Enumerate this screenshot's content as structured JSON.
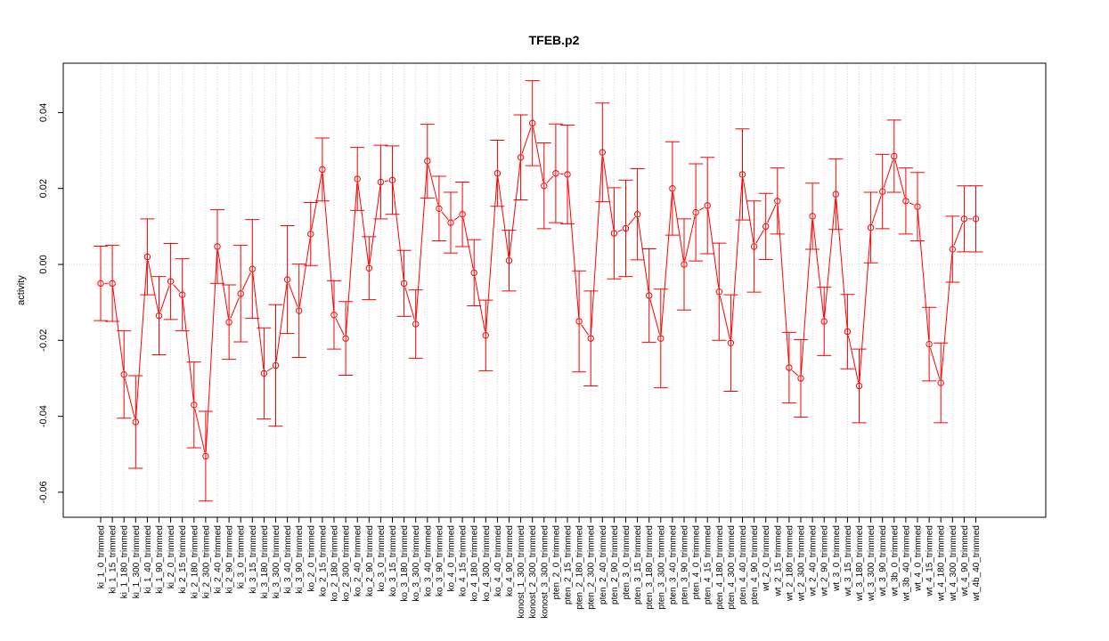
{
  "chart_data": {
    "type": "line",
    "title": "TFEB.p2",
    "ylabel": "activity",
    "xlabel": "",
    "ylim": [
      -0.0665,
      0.0525
    ],
    "yticks": [
      -0.06,
      -0.04,
      -0.02,
      0.0,
      0.02,
      0.04
    ],
    "ytick_labels": [
      "-0.06",
      "-0.04",
      "-0.02",
      "0.00",
      "0.02",
      "0.04"
    ],
    "grid": true,
    "colors": {
      "series": "#ff0000",
      "grid": "#d3d3d3",
      "axis": "#000000"
    },
    "categories": [
      "ki_1_0_trimmed",
      "ki_1_15_trimmed",
      "ki_1_180_trimmed",
      "ki_1_300_trimmed",
      "ki_1_40_trimmed",
      "ki_1_90_trimmed",
      "ki_2_0_trimmed",
      "ki_2_15_trimmed",
      "ki_2_180_trimmed",
      "ki_2_300_trimmed",
      "ki_2_40_trimmed",
      "ki_2_90_trimmed",
      "ki_3_0_trimmed",
      "ki_3_15_trimmed",
      "ki_3_180_trimmed",
      "ki_3_300_trimmed",
      "ki_3_40_trimmed",
      "ki_3_90_trimmed",
      "ko_2_0_trimmed",
      "ko_2_15_trimmed",
      "ko_2_180_trimmed",
      "ko_2_300_trimmed",
      "ko_2_40_trimmed",
      "ko_2_90_trimmed",
      "ko_3_0_trimmed",
      "ko_3_15_trimmed",
      "ko_3_180_trimmed",
      "ko_3_300_trimmed",
      "ko_3_40_trimmed",
      "ko_3_90_trimmed",
      "ko_4_0_trimmed",
      "ko_4_15_trimmed",
      "ko_4_180_trimmed",
      "ko_4_300_trimmed",
      "ko_4_40_trimmed",
      "ko_4_90_trimmed",
      "konost_1_300_trimmed",
      "konost_2_300_trimmed",
      "konost_3_300_trimmed",
      "pten_2_0_trimmed",
      "pten_2_15_trimmed",
      "pten_2_180_trimmed",
      "pten_2_300_trimmed",
      "pten_2_40_trimmed",
      "pten_2_90_trimmed",
      "pten_3_0_trimmed",
      "pten_3_15_trimmed",
      "pten_3_180_trimmed",
      "pten_3_300_trimmed",
      "pten_3_40_trimmed",
      "pten_3_90_trimmed",
      "pten_4_0_trimmed",
      "pten_4_15_trimmed",
      "pten_4_180_trimmed",
      "pten_4_300_trimmed",
      "pten_4_40_trimmed",
      "pten_4_90_trimmed",
      "wt_2_0_trimmed",
      "wt_2_15_trimmed",
      "wt_2_180_trimmed",
      "wt_2_300_trimmed",
      "wt_2_40_trimmed",
      "wt_2_90_trimmed",
      "wt_3_0_trimmed",
      "wt_3_15_trimmed",
      "wt_3_180_trimmed",
      "wt_3_300_trimmed",
      "wt_3_90_trimmed",
      "wt_3b_0_trimmed",
      "wt_3b_40_trimmed",
      "wt_4_0_trimmed",
      "wt_4_15_trimmed",
      "wt_4_180_trimmed",
      "wt_4_300_trimmed",
      "wt_4_90_trimmed",
      "wt_4b_40_trimmed"
    ],
    "series": [
      {
        "values": [
          -0.005,
          -0.005,
          -0.029,
          -0.0415,
          0.002,
          -0.0135,
          -0.0045,
          -0.008,
          -0.037,
          -0.0505,
          0.0047,
          -0.0152,
          -0.0077,
          -0.0012,
          -0.0287,
          -0.0266,
          -0.004,
          -0.0122,
          0.008,
          0.025,
          -0.0133,
          -0.0195,
          0.0225,
          -0.001,
          0.0217,
          0.0222,
          -0.005,
          -0.0157,
          0.0272,
          0.0147,
          0.011,
          0.0132,
          -0.0022,
          -0.0187,
          0.024,
          0.001,
          0.0282,
          0.0372,
          0.0207,
          0.024,
          0.0237,
          -0.015,
          -0.0195,
          0.0295,
          0.0082,
          0.0095,
          0.0132,
          -0.0082,
          -0.0195,
          0.02,
          0.0,
          0.0137,
          0.0155,
          -0.0072,
          -0.0207,
          0.0237,
          0.0047,
          0.01,
          0.0167,
          -0.0272,
          -0.03,
          0.0127,
          -0.015,
          0.0185,
          -0.0177,
          -0.032,
          0.0097,
          0.0192,
          0.0285,
          0.0167,
          0.0152,
          -0.021,
          -0.0312,
          0.004,
          0.012,
          0.012
        ],
        "errors": [
          0.0098,
          0.01,
          0.0115,
          0.0122,
          0.01,
          0.0103,
          0.01,
          0.0095,
          0.0113,
          0.0118,
          0.0097,
          0.0098,
          0.0127,
          0.013,
          0.012,
          0.016,
          0.0142,
          0.0123,
          0.0083,
          0.0083,
          0.009,
          0.0097,
          0.0083,
          0.0083,
          0.0097,
          0.009,
          0.0087,
          0.009,
          0.0097,
          0.0085,
          0.008,
          0.0085,
          0.0087,
          0.0093,
          0.0087,
          0.008,
          0.0112,
          0.0112,
          0.0113,
          0.013,
          0.013,
          0.0133,
          0.0125,
          0.013,
          0.012,
          0.0127,
          0.012,
          0.0123,
          0.013,
          0.0123,
          0.012,
          0.0128,
          0.0127,
          0.0128,
          0.0127,
          0.012,
          0.012,
          0.0087,
          0.0087,
          0.0093,
          0.0102,
          0.0087,
          0.009,
          0.0093,
          0.0098,
          0.0097,
          0.0093,
          0.0098,
          0.0095,
          0.0087,
          0.009,
          0.0097,
          0.0105,
          0.0087,
          0.0087,
          0.0087
        ]
      }
    ]
  }
}
